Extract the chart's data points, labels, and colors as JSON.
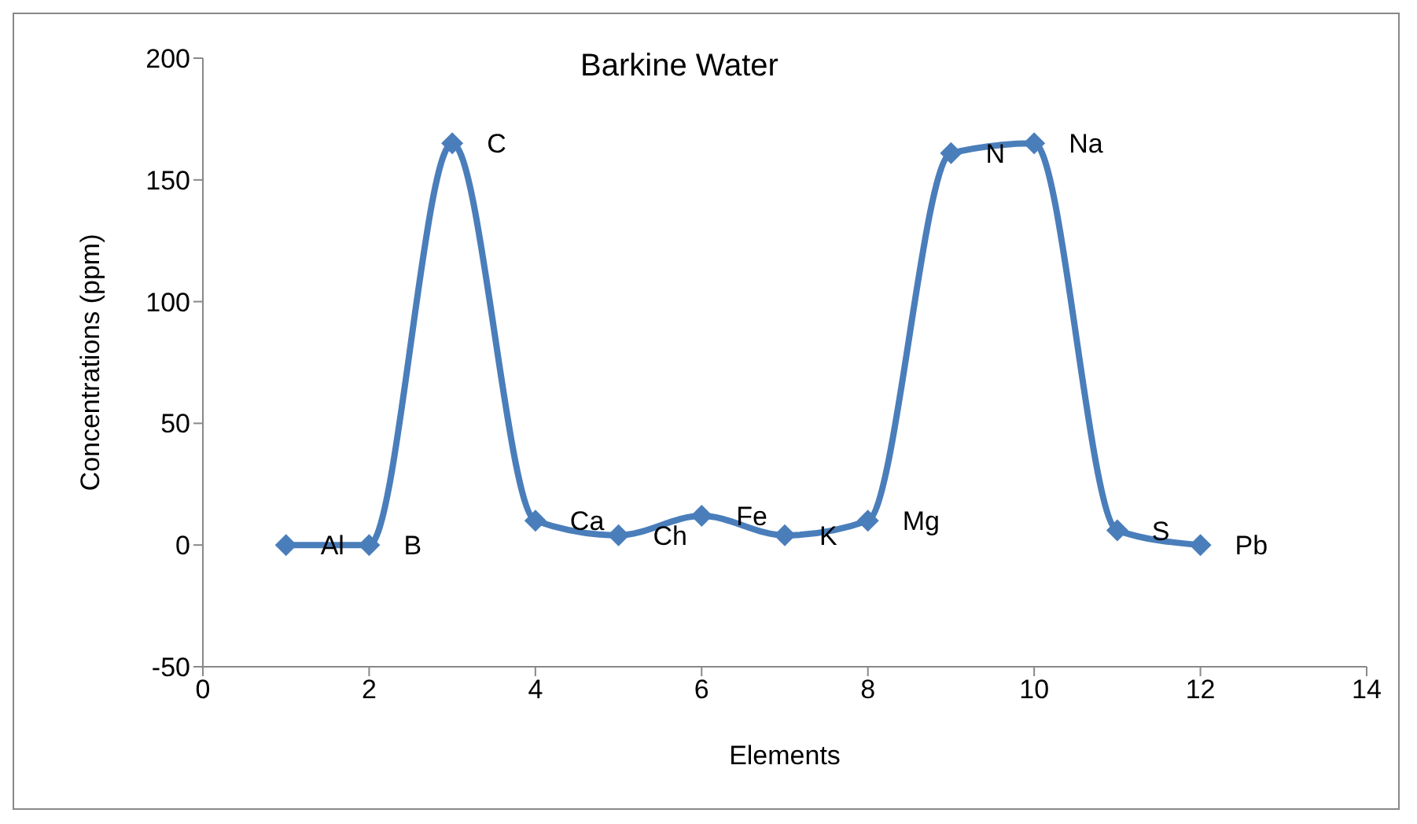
{
  "chart_data": {
    "type": "line",
    "title": "Barkine Water",
    "xlabel": "Elements",
    "ylabel": "Concentrations (ppm)",
    "x": [
      1,
      2,
      3,
      4,
      5,
      6,
      7,
      8,
      9,
      10,
      11,
      12
    ],
    "series": [
      {
        "color": "#4a7ebb",
        "values": [
          0,
          0,
          165,
          10,
          4,
          12,
          4,
          10,
          161,
          165,
          6,
          0
        ]
      }
    ],
    "annotations": [
      {
        "text": "Al",
        "x": 1,
        "y": 0
      },
      {
        "text": "B",
        "x": 2,
        "y": 0
      },
      {
        "text": "C",
        "x": 3,
        "y": 165
      },
      {
        "text": "Ca",
        "x": 4,
        "y": 10
      },
      {
        "text": "Ch",
        "x": 5,
        "y": 4
      },
      {
        "text": "Fe",
        "x": 6,
        "y": 12
      },
      {
        "text": "K",
        "x": 7,
        "y": 4
      },
      {
        "text": "Mg",
        "x": 8,
        "y": 10
      },
      {
        "text": "N",
        "x": 9,
        "y": 161
      },
      {
        "text": "Na",
        "x": 10,
        "y": 165
      },
      {
        "text": "S",
        "x": 11,
        "y": 6
      },
      {
        "text": "Pb",
        "x": 12,
        "y": 0
      }
    ],
    "xlim": [
      0,
      14
    ],
    "xticks": [
      0,
      2,
      4,
      6,
      8,
      10,
      12,
      14
    ],
    "ylim": [
      -50,
      200
    ],
    "yticks": [
      -50,
      0,
      50,
      100,
      150,
      200
    ],
    "grid": false,
    "legend": false,
    "marker": "diamond",
    "line_style": "solid"
  }
}
